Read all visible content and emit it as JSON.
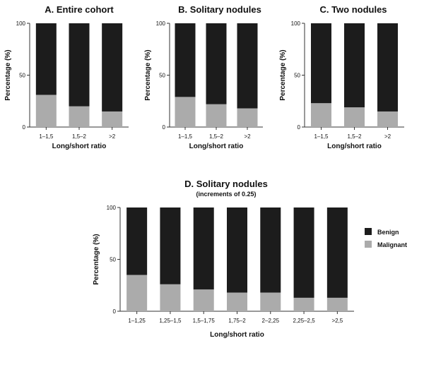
{
  "colors": {
    "benign": "#1c1c1c",
    "malignant": "#ababab",
    "axis": "#333333"
  },
  "legend": [
    {
      "name": "Benign",
      "color": "#1c1c1c"
    },
    {
      "name": "Malignant",
      "color": "#ababab"
    }
  ],
  "chart_data": [
    {
      "type": "bar",
      "stacked": true,
      "title": "A. Entire cohort",
      "xlabel": "Long/short ratio",
      "ylabel": "Percentage (%)",
      "ylim": [
        0,
        100
      ],
      "yticks": [
        0,
        50,
        100
      ],
      "categories": [
        "1–1,5",
        "1,5–2",
        ">2"
      ],
      "series": [
        {
          "name": "Malignant",
          "values": [
            31,
            20,
            15
          ]
        },
        {
          "name": "Benign",
          "values": [
            69,
            80,
            85
          ]
        }
      ]
    },
    {
      "type": "bar",
      "stacked": true,
      "title": "B. Solitary nodules",
      "xlabel": "Long/short ratio",
      "ylabel": "Percentage (%)",
      "ylim": [
        0,
        100
      ],
      "yticks": [
        0,
        50,
        100
      ],
      "categories": [
        "1–1,5",
        "1,5–2",
        ">2"
      ],
      "series": [
        {
          "name": "Malignant",
          "values": [
            29,
            22,
            18
          ]
        },
        {
          "name": "Benign",
          "values": [
            71,
            78,
            82
          ]
        }
      ]
    },
    {
      "type": "bar",
      "stacked": true,
      "title": "C. Two nodules",
      "xlabel": "Long/short ratio",
      "ylabel": "Percentage (%)",
      "ylim": [
        0,
        100
      ],
      "yticks": [
        0,
        50,
        100
      ],
      "categories": [
        "1–1,5",
        "1,5–2",
        ">2"
      ],
      "series": [
        {
          "name": "Malignant",
          "values": [
            23,
            19,
            15
          ]
        },
        {
          "name": "Benign",
          "values": [
            77,
            81,
            85
          ]
        }
      ]
    },
    {
      "type": "bar",
      "stacked": true,
      "title": "D. Solitary nodules",
      "subtitle": "(increments of 0.25)",
      "xlabel": "Long/short ratio",
      "ylabel": "Percentage (%)",
      "ylim": [
        0,
        100
      ],
      "yticks": [
        0,
        50,
        100
      ],
      "legend_position": "right",
      "categories": [
        "1–1,25",
        "1,25–1,5",
        "1,5–1,75",
        "1,75–2",
        "2–2,25",
        "2,25–2,5",
        ">2,5"
      ],
      "series": [
        {
          "name": "Malignant",
          "values": [
            35,
            26,
            21,
            18,
            18,
            13,
            13
          ]
        },
        {
          "name": "Benign",
          "values": [
            65,
            74,
            79,
            82,
            82,
            87,
            87
          ]
        }
      ]
    }
  ]
}
